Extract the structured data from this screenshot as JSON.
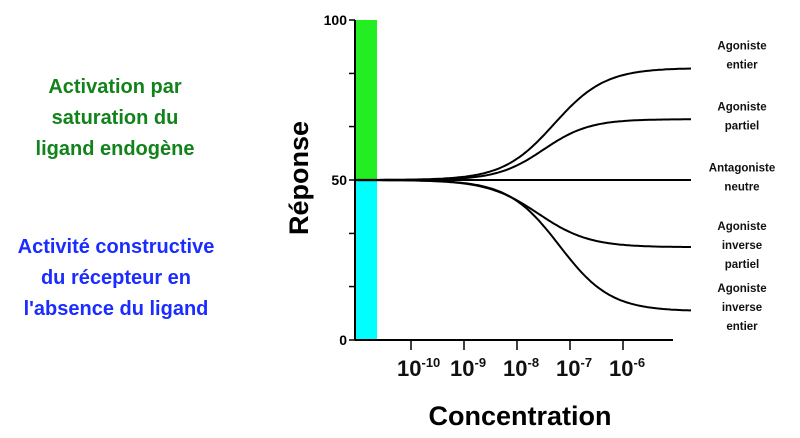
{
  "annotations": {
    "green_note": [
      "Activation par",
      "saturation du",
      "ligand endogène"
    ],
    "blue_note": [
      "Activité constructive",
      "du récepteur en",
      "l'absence du ligand"
    ]
  },
  "colors": {
    "green_bar": "#22ee22",
    "cyan_bar": "#00ffff",
    "green_text": "#12821b",
    "blue_text": "#1a2cff"
  },
  "chart_data": {
    "type": "line",
    "xlabel": "Concentration",
    "ylabel": "Réponse",
    "ylim": [
      0,
      100
    ],
    "y_ticks": [
      0,
      50,
      100
    ],
    "y_minor_ticks": [
      0,
      16.7,
      33.3,
      50,
      66.7,
      83.3,
      100
    ],
    "x_scale": "log",
    "x_ticks": [
      {
        "base": "10",
        "exp": "-10",
        "log": -10
      },
      {
        "base": "10",
        "exp": "-9",
        "log": -9
      },
      {
        "base": "10",
        "exp": "-8",
        "log": -8
      },
      {
        "base": "10",
        "exp": "-7",
        "log": -7
      },
      {
        "base": "10",
        "exp": "-6",
        "log": -6
      }
    ],
    "xlim_log": [
      -11.1,
      -4.7
    ],
    "baseline": 50,
    "bars": [
      {
        "name": "green",
        "from": 50,
        "to": 100
      },
      {
        "name": "cyan",
        "from": 0,
        "to": 50
      }
    ],
    "series": [
      {
        "name": "Agoniste entier",
        "label": [
          "Agoniste",
          "entier"
        ],
        "plateau": 85,
        "log_ec50": -7.3,
        "hill": 0.9
      },
      {
        "name": "Agoniste partiel",
        "label": [
          "Agoniste",
          "partiel"
        ],
        "plateau": 69,
        "log_ec50": -7.5,
        "hill": 1.0
      },
      {
        "name": "Antagoniste neutre",
        "label": [
          "Antagoniste",
          "neutre"
        ],
        "plateau": 50,
        "log_ec50": -7.5,
        "hill": 1.0
      },
      {
        "name": "Agoniste inverse partiel",
        "label": [
          "Agoniste",
          "inverse",
          "partiel"
        ],
        "plateau": 29,
        "log_ec50": -7.6,
        "hill": 0.9
      },
      {
        "name": "Agoniste inverse entier",
        "label": [
          "Agoniste",
          "inverse",
          "entier"
        ],
        "plateau": 9,
        "log_ec50": -7.2,
        "hill": 0.9
      }
    ]
  }
}
